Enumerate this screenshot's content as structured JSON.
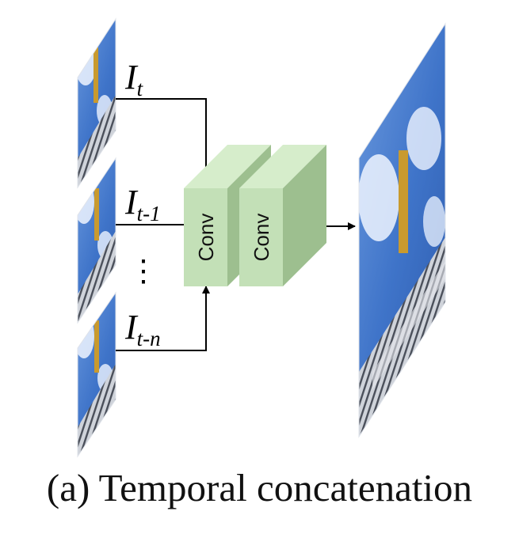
{
  "inputs": [
    {
      "symbol": "I",
      "subscript": "t"
    },
    {
      "symbol": "I",
      "subscript": "t-1"
    },
    {
      "symbol": "I",
      "subscript": "t-n"
    }
  ],
  "ellipsis": "⋮",
  "conv_blocks": [
    {
      "label": "Conv"
    },
    {
      "label": "Conv"
    }
  ],
  "caption": "(a) Temporal concatenation",
  "colors": {
    "conv_front": "#c3e0b7",
    "conv_top": "#d6edcb",
    "conv_side": "#9dbf8f",
    "sky": "#3f74c9",
    "cloud": "#eef4ff",
    "building": "#cfd3da",
    "stripe": "#4a4f5a",
    "gold": "#c99a2e"
  }
}
